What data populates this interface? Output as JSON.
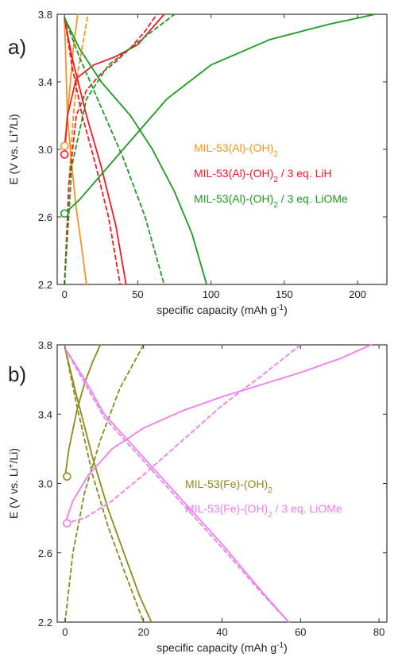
{
  "chart_data": [
    {
      "type": "line",
      "panel_label": "a)",
      "xlabel_main": "specific capacity (mAh g",
      "xlabel_sup": "-1",
      "xlabel_end": ")",
      "ylabel_main": "E (V vs. Li",
      "ylabel_sup": "+",
      "ylabel_end": "/Li)",
      "xlim": [
        -5,
        220
      ],
      "ylim": [
        2.2,
        3.8
      ],
      "xticks": [
        0,
        50,
        100,
        150,
        200
      ],
      "yticks": [
        2.2,
        2.6,
        3.0,
        3.4,
        3.8
      ],
      "xtick_labels": [
        "0",
        "50",
        "100",
        "150",
        "200"
      ],
      "ytick_labels": [
        "2.2",
        "2.6",
        "3.0",
        "3.4",
        "3.8"
      ],
      "legend": [
        {
          "main": "MIL-53(Al)-(OH)",
          "sub": "2",
          "tail": "",
          "color": "#F7941D"
        },
        {
          "main": "MIL-53(Al)-(OH)",
          "sub": "2",
          "tail": " / 3 eq. LiH",
          "color": "#EE1C25"
        },
        {
          "main": "MIL-53(Al)-(OH)",
          "sub": "2",
          "tail": " / 3 eq. LiOMe",
          "color": "#1E9A1E"
        }
      ],
      "series": [
        {
          "color": "#F7941D",
          "dashed": false,
          "x": [
            0,
            2,
            5,
            8,
            12,
            15
          ],
          "y": [
            3.78,
            3.2,
            2.9,
            2.65,
            2.4,
            2.2
          ]
        },
        {
          "color": "#F7941D",
          "dashed": false,
          "x": [
            0,
            3,
            6,
            9
          ],
          "y": [
            3.02,
            3.3,
            3.6,
            3.8
          ]
        },
        {
          "color": "#F7941D",
          "dashed": true,
          "x": [
            0,
            3,
            6,
            9,
            13,
            16
          ],
          "y": [
            2.2,
            2.8,
            3.2,
            3.45,
            3.65,
            3.8
          ]
        },
        {
          "color": "#EE1C25",
          "dashed": false,
          "x": [
            0,
            5,
            15,
            25,
            35,
            42
          ],
          "y": [
            3.78,
            3.55,
            3.2,
            2.9,
            2.55,
            2.2
          ]
        },
        {
          "color": "#EE1C25",
          "dashed": false,
          "x": [
            0,
            2,
            8,
            20,
            35,
            50,
            68
          ],
          "y": [
            2.97,
            3.2,
            3.42,
            3.5,
            3.55,
            3.62,
            3.8
          ]
        },
        {
          "color": "#EE1C25",
          "dashed": true,
          "x": [
            0,
            5,
            12,
            20,
            30,
            38
          ],
          "y": [
            3.78,
            3.5,
            3.2,
            2.95,
            2.6,
            2.2
          ]
        },
        {
          "color": "#EE1C25",
          "dashed": true,
          "x": [
            0,
            3,
            8,
            15,
            25,
            35,
            45,
            55,
            63
          ],
          "y": [
            2.2,
            2.8,
            3.2,
            3.35,
            3.45,
            3.52,
            3.6,
            3.7,
            3.8
          ]
        },
        {
          "color": "#1E9A1E",
          "dashed": false,
          "x": [
            0,
            10,
            25,
            45,
            60,
            75,
            87,
            97
          ],
          "y": [
            3.78,
            3.6,
            3.4,
            3.2,
            3.0,
            2.75,
            2.5,
            2.2
          ]
        },
        {
          "color": "#1E9A1E",
          "dashed": false,
          "x": [
            0,
            10,
            25,
            45,
            70,
            100,
            140,
            180,
            212
          ],
          "y": [
            2.62,
            2.7,
            2.85,
            3.05,
            3.3,
            3.5,
            3.65,
            3.74,
            3.8
          ]
        },
        {
          "color": "#1E9A1E",
          "dashed": true,
          "x": [
            0,
            10,
            25,
            40,
            55,
            68
          ],
          "y": [
            3.78,
            3.55,
            3.25,
            2.95,
            2.6,
            2.2
          ]
        },
        {
          "color": "#1E9A1E",
          "dashed": true,
          "x": [
            0,
            5,
            15,
            30,
            45,
            60,
            75
          ],
          "y": [
            2.2,
            2.9,
            3.3,
            3.5,
            3.6,
            3.7,
            3.8
          ]
        }
      ],
      "markers": [
        {
          "color": "#F7941D",
          "x": 0,
          "y": 3.02
        },
        {
          "color": "#EE1C25",
          "x": 0,
          "y": 2.97
        },
        {
          "color": "#1E9A1E",
          "x": 0,
          "y": 2.62
        }
      ]
    },
    {
      "type": "line",
      "panel_label": "b)",
      "xlabel_main": "specific capacity (mAh g",
      "xlabel_sup": "-1",
      "xlabel_end": ")",
      "ylabel_main": "E (V vs. Li",
      "ylabel_sup": "+",
      "ylabel_end": "/Li)",
      "xlim": [
        -2,
        82
      ],
      "ylim": [
        2.2,
        3.8
      ],
      "xticks": [
        0,
        20,
        40,
        60,
        80
      ],
      "yticks": [
        2.2,
        2.6,
        3.0,
        3.4,
        3.8
      ],
      "xtick_labels": [
        "0",
        "20",
        "40",
        "60",
        "80"
      ],
      "ytick_labels": [
        "2.2",
        "2.6",
        "3.0",
        "3.4",
        "3.8"
      ],
      "legend": [
        {
          "main": "MIL-53(Fe)-(OH)",
          "sub": "2",
          "tail": "",
          "color": "#8B8B1A"
        },
        {
          "main": "MIL-53(Fe)-(OH)",
          "sub": "2",
          "tail": " / 3 eq. LiOMe",
          "color": "#F07CF0"
        }
      ],
      "series": [
        {
          "color": "#8B8B1A",
          "dashed": false,
          "x": [
            0,
            3,
            7,
            11,
            15,
            19,
            22
          ],
          "y": [
            3.78,
            3.5,
            3.15,
            2.85,
            2.6,
            2.35,
            2.2
          ]
        },
        {
          "color": "#8B8B1A",
          "dashed": false,
          "x": [
            0,
            1,
            3,
            5,
            7,
            9
          ],
          "y": [
            3.04,
            3.2,
            3.42,
            3.58,
            3.7,
            3.8
          ]
        },
        {
          "color": "#8B8B1A",
          "dashed": true,
          "x": [
            0,
            3,
            7,
            11,
            15,
            20
          ],
          "y": [
            3.78,
            3.45,
            3.05,
            2.75,
            2.5,
            2.2
          ]
        },
        {
          "color": "#8B8B1A",
          "dashed": true,
          "x": [
            0,
            2,
            5,
            9,
            14,
            20
          ],
          "y": [
            2.2,
            2.6,
            2.95,
            3.25,
            3.55,
            3.8
          ]
        },
        {
          "color": "#F07CF0",
          "dashed": false,
          "x": [
            0,
            5,
            10,
            20,
            30,
            40,
            50,
            57
          ],
          "y": [
            3.78,
            3.6,
            3.4,
            3.15,
            2.9,
            2.65,
            2.38,
            2.2
          ]
        },
        {
          "color": "#F07CF0",
          "dashed": false,
          "x": [
            0,
            2,
            6,
            12,
            20,
            30,
            40,
            50,
            60,
            70,
            78
          ],
          "y": [
            2.77,
            2.9,
            3.05,
            3.2,
            3.32,
            3.42,
            3.5,
            3.57,
            3.64,
            3.72,
            3.8
          ]
        },
        {
          "color": "#F07CF0",
          "dashed": true,
          "x": [
            0,
            5,
            10,
            20,
            30,
            40,
            50,
            57
          ],
          "y": [
            3.78,
            3.58,
            3.38,
            3.13,
            2.88,
            2.63,
            2.37,
            2.2
          ]
        },
        {
          "color": "#F07CF0",
          "dashed": true,
          "x": [
            0,
            5,
            12,
            20,
            30,
            40,
            50,
            60
          ],
          "y": [
            2.77,
            2.8,
            2.9,
            3.05,
            3.25,
            3.45,
            3.62,
            3.8
          ]
        }
      ],
      "markers": [
        {
          "color": "#8B8B1A",
          "x": 0.5,
          "y": 3.04
        },
        {
          "color": "#F07CF0",
          "x": 0.5,
          "y": 2.77
        }
      ]
    }
  ]
}
